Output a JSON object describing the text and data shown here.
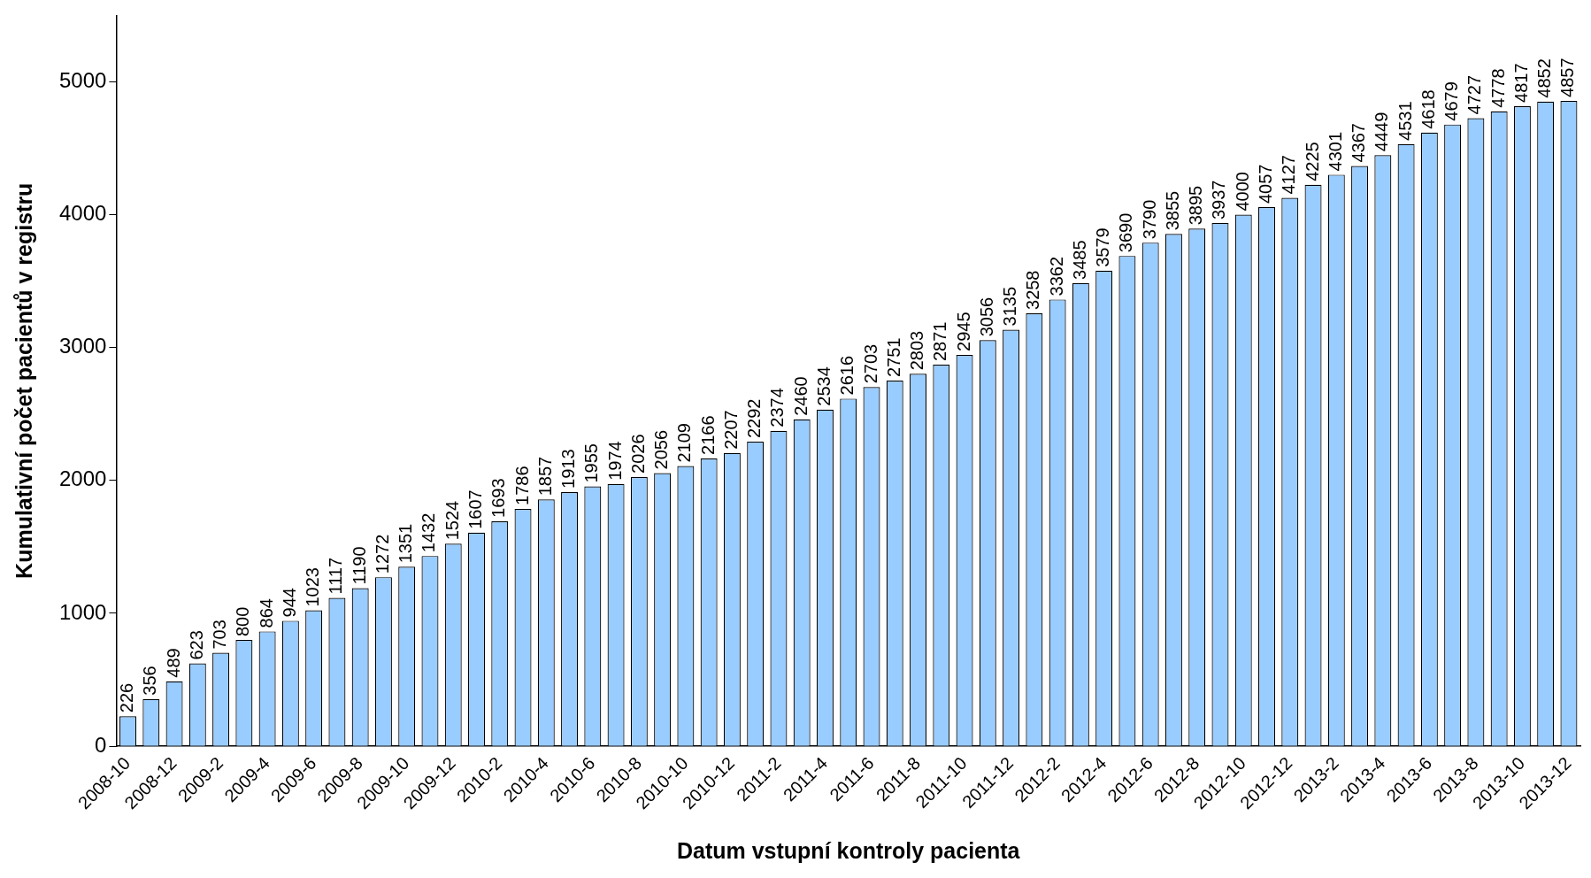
{
  "chart_data": {
    "type": "bar",
    "xlabel": "Datum vstupní kontroly pacienta",
    "ylabel": "Kumulativní počet pacientů v registru",
    "categories": [
      "2008-10",
      null,
      "2008-12",
      null,
      "2009-2",
      null,
      "2009-4",
      null,
      "2009-6",
      null,
      "2009-8",
      null,
      "2009-10",
      null,
      "2009-12",
      null,
      "2010-2",
      null,
      "2010-4",
      null,
      "2010-6",
      null,
      "2010-8",
      null,
      "2010-10",
      null,
      "2010-12",
      null,
      "2011-2",
      null,
      "2011-4",
      null,
      "2011-6",
      null,
      "2011-8",
      null,
      "2011-10",
      null,
      "2011-12",
      null,
      "2012-2",
      null,
      "2012-4",
      null,
      "2012-6",
      null,
      "2012-8",
      null,
      "2012-10",
      null,
      "2012-12",
      null,
      "2013-2",
      null,
      "2013-4",
      null,
      "2013-6",
      null,
      "2013-8",
      null,
      "2013-10",
      null,
      "2013-12"
    ],
    "values": [
      226,
      356,
      489,
      623,
      703,
      800,
      864,
      944,
      1023,
      1117,
      1190,
      1272,
      1351,
      1432,
      1524,
      1607,
      1693,
      1786,
      1857,
      1913,
      1955,
      1974,
      2026,
      2056,
      2109,
      2166,
      2207,
      2292,
      2374,
      2460,
      2534,
      2616,
      2703,
      2751,
      2803,
      2871,
      2945,
      3056,
      3135,
      3258,
      3362,
      3485,
      3579,
      3690,
      3790,
      3855,
      3895,
      3937,
      4000,
      4057,
      4127,
      4225,
      4301,
      4367,
      4449,
      4531,
      4618,
      4679,
      4727,
      4778,
      4817,
      4852,
      4857
    ],
    "color": "#99ccff",
    "ylim": [
      0,
      5500
    ],
    "yticks": [
      0,
      1000,
      2000,
      3000,
      4000,
      5000
    ],
    "grid": false,
    "legend": false,
    "data_labels": true
  }
}
